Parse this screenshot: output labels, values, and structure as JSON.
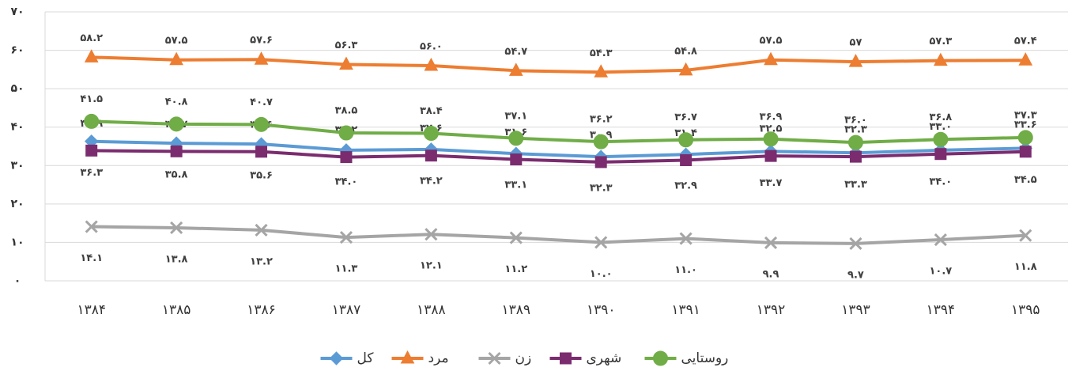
{
  "chart_data": {
    "type": "line",
    "categories": [
      "۱۳۸۴",
      "۱۳۸۵",
      "۱۳۸۶",
      "۱۳۸۷",
      "۱۳۸۸",
      "۱۳۸۹",
      "۱۳۹۰",
      "۱۳۹۱",
      "۱۳۹۲",
      "۱۳۹۳",
      "۱۳۹۴",
      "۱۳۹۵"
    ],
    "ylim": [
      0,
      70
    ],
    "yticks": [
      {
        "value": 0,
        "label": "۰"
      },
      {
        "value": 10,
        "label": "۱۰"
      },
      {
        "value": 20,
        "label": "۲۰"
      },
      {
        "value": 30,
        "label": "۳۰"
      },
      {
        "value": 40,
        "label": "۴۰"
      },
      {
        "value": 50,
        "label": "۵۰"
      },
      {
        "value": 60,
        "label": "۶۰"
      },
      {
        "value": 70,
        "label": "۷۰"
      }
    ],
    "grid": true,
    "legend": "bottom",
    "series": [
      {
        "name": "کل",
        "color": "#5b9bd5",
        "marker": "diamond",
        "values": [
          36.3,
          35.8,
          35.6,
          34.0,
          34.2,
          33.1,
          32.3,
          32.9,
          33.7,
          33.3,
          34.0,
          34.5
        ],
        "value_labels": [
          "۳۶.۳",
          "۳۵.۸",
          "۳۵.۶",
          "۳۴.۰",
          "۳۴.۲",
          "۳۳.۱",
          "۳۲.۳",
          "۳۲.۹",
          "۳۳.۷",
          "۳۳.۳",
          "۳۴.۰",
          "۳۴.۵"
        ]
      },
      {
        "name": "مرد",
        "color": "#ed7d31",
        "marker": "triangle",
        "values": [
          58.2,
          57.5,
          57.6,
          56.3,
          56.0,
          54.7,
          54.3,
          54.8,
          57.5,
          57,
          57.3,
          57.4
        ],
        "value_labels": [
          "۵۸.۲",
          "۵۷.۵",
          "۵۷.۶",
          "۵۶.۳",
          "۵۶.۰",
          "۵۴.۷",
          "۵۴.۳",
          "۵۴.۸",
          "۵۷.۵",
          "۵۷",
          "۵۷.۳",
          "۵۷.۴"
        ]
      },
      {
        "name": "زن",
        "color": "#a5a5a5",
        "marker": "x",
        "values": [
          14.1,
          13.8,
          13.2,
          11.3,
          12.1,
          11.2,
          10.0,
          11.0,
          9.9,
          9.7,
          10.7,
          11.8
        ],
        "value_labels": [
          "۱۴.۱",
          "۱۳.۸",
          "۱۳.۲",
          "۱۱.۳",
          "۱۲.۱",
          "۱۱.۲",
          "۱۰.۰",
          "۱۱.۰",
          "۹.۹",
          "۹.۷",
          "۱۰.۷",
          "۱۱.۸"
        ]
      },
      {
        "name": "شهری",
        "color": "#7b2c6f",
        "marker": "square",
        "values": [
          33.9,
          33.7,
          33.6,
          32.2,
          32.6,
          31.6,
          30.9,
          31.4,
          32.5,
          32.3,
          33.0,
          33.6
        ],
        "value_labels": [
          "۳۳.۹",
          "۳۳.۷",
          "۳۳.۶",
          "۳۲.۲",
          "۳۲.۶",
          "۳۱.۶",
          "۳۰.۹",
          "۳۱.۴",
          "۳۲.۵",
          "۳۲.۳",
          "۳۳.۰",
          "۳۳.۶"
        ]
      },
      {
        "name": "روستایی",
        "color": "#70ad47",
        "marker": "circle",
        "values": [
          41.5,
          40.8,
          40.7,
          38.5,
          38.4,
          37.1,
          36.2,
          36.7,
          36.9,
          36.0,
          36.8,
          37.3
        ],
        "value_labels": [
          "۴۱.۵",
          "۴۰.۸",
          "۴۰.۷",
          "۳۸.۵",
          "۳۸.۴",
          "۳۷.۱",
          "۳۶.۲",
          "۳۶.۷",
          "۳۶.۹",
          "۳۶.۰",
          "۳۶.۸",
          "۳۷.۳"
        ]
      }
    ]
  }
}
